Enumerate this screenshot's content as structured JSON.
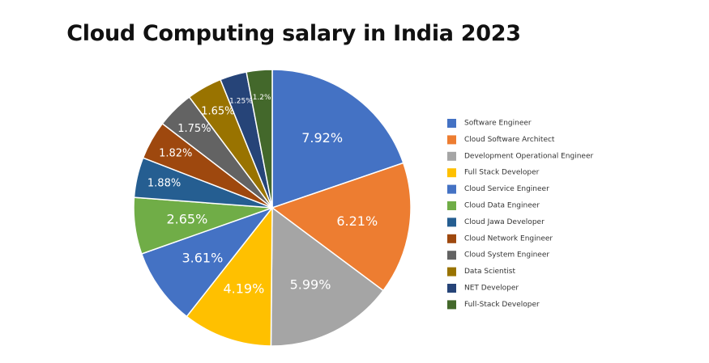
{
  "chart_data": {
    "type": "pie",
    "title": "Cloud Computing salary in India 2023",
    "categories": [
      "Software Engineer",
      "Cloud Software Architect",
      "Development Operational Engineer",
      "Full Stack Developer",
      "Cloud Service Engineer",
      "Cloud Data Engineer",
      "Cloud Jawa Developer",
      "Cloud Network Engineer",
      "Cloud System Engineer",
      "Data Scientist",
      "NET Developer",
      "Full-Stack Developer"
    ],
    "values": [
      7.92,
      6.21,
      5.99,
      4.19,
      3.61,
      2.65,
      1.88,
      1.82,
      1.75,
      1.65,
      1.25,
      1.2
    ],
    "labels": [
      "7.92%",
      "6.21%",
      "5.99%",
      "4.19%",
      "3.61%",
      "2.65%",
      "1.88%",
      "1.82%",
      "1.75%",
      "1.65%",
      "1.25%",
      "1.2%"
    ],
    "colors": [
      "#4472c4",
      "#ed7d31",
      "#a5a5a5",
      "#ffc000",
      "#4472c4",
      "#70ad47",
      "#255e91",
      "#9e480e",
      "#636363",
      "#997300",
      "#264478",
      "#43682b"
    ],
    "legend_position": "right"
  }
}
